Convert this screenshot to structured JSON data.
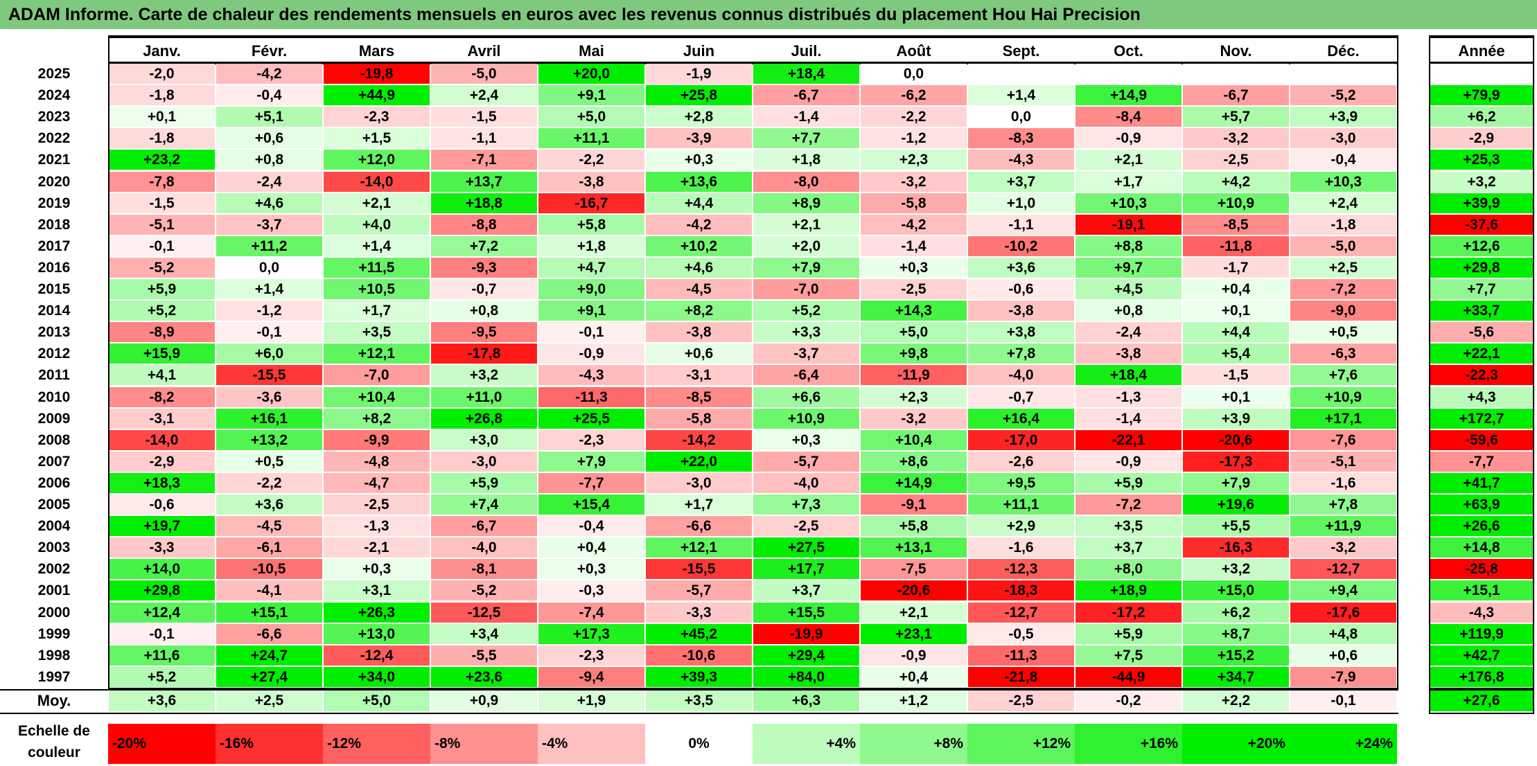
{
  "title": "ADAM Informe. Carte de chaleur des rendements mensuels en euros avec les revenus connus distribués du placement Hou Hai Precision",
  "chart_data": {
    "type": "heatmap",
    "months": [
      "Janv.",
      "Févr.",
      "Mars",
      "Avril",
      "Mai",
      "Juin",
      "Juil.",
      "Août",
      "Sept.",
      "Oct.",
      "Nov.",
      "Déc."
    ],
    "year_header": "Année",
    "rows": [
      {
        "year": "2025",
        "values": [
          -2.0,
          -4.2,
          -19.8,
          -5.0,
          20.0,
          -1.9,
          18.4,
          0.0,
          null,
          null,
          null,
          null
        ],
        "annual": null
      },
      {
        "year": "2024",
        "values": [
          -1.8,
          -0.4,
          44.9,
          2.4,
          9.1,
          25.8,
          -6.7,
          -6.2,
          1.4,
          14.9,
          -6.7,
          -5.2
        ],
        "annual": 79.9
      },
      {
        "year": "2023",
        "values": [
          0.1,
          5.1,
          -2.3,
          -1.5,
          5.0,
          2.8,
          -1.4,
          -2.2,
          0.0,
          -8.4,
          5.7,
          3.9
        ],
        "annual": 6.2
      },
      {
        "year": "2022",
        "values": [
          -1.8,
          0.6,
          1.5,
          -1.1,
          11.1,
          -3.9,
          7.7,
          -1.2,
          -8.3,
          -0.9,
          -3.2,
          -3.0
        ],
        "annual": -2.9
      },
      {
        "year": "2021",
        "values": [
          23.2,
          0.8,
          12.0,
          -7.1,
          -2.2,
          0.3,
          1.8,
          2.3,
          -4.3,
          2.1,
          -2.5,
          -0.4
        ],
        "annual": 25.3
      },
      {
        "year": "2020",
        "values": [
          -7.8,
          -2.4,
          -14.0,
          13.7,
          -3.8,
          13.6,
          -8.0,
          -3.2,
          3.7,
          1.7,
          4.2,
          10.3
        ],
        "annual": 3.2
      },
      {
        "year": "2019",
        "values": [
          -1.5,
          4.6,
          2.1,
          18.8,
          -16.7,
          4.4,
          8.9,
          -5.8,
          1.0,
          10.3,
          10.9,
          2.4
        ],
        "annual": 39.9
      },
      {
        "year": "2018",
        "values": [
          -5.1,
          -3.7,
          4.0,
          -8.8,
          5.8,
          -4.2,
          2.1,
          -4.2,
          -1.1,
          -19.1,
          -8.5,
          -1.8
        ],
        "annual": -37.6
      },
      {
        "year": "2017",
        "values": [
          -0.1,
          11.2,
          1.4,
          7.2,
          1.8,
          10.2,
          2.0,
          -1.4,
          -10.2,
          8.8,
          -11.8,
          -5.0
        ],
        "annual": 12.6
      },
      {
        "year": "2016",
        "values": [
          -5.2,
          0.0,
          11.5,
          -9.3,
          4.7,
          4.6,
          7.9,
          0.3,
          3.6,
          9.7,
          -1.7,
          2.5
        ],
        "annual": 29.8
      },
      {
        "year": "2015",
        "values": [
          5.9,
          1.4,
          10.5,
          -0.7,
          9.0,
          -4.5,
          -7.0,
          -2.5,
          -0.6,
          4.5,
          0.4,
          -7.2
        ],
        "annual": 7.7
      },
      {
        "year": "2014",
        "values": [
          5.2,
          -1.2,
          1.7,
          0.8,
          9.1,
          8.2,
          5.2,
          14.3,
          -3.8,
          0.8,
          0.1,
          -9.0
        ],
        "annual": 33.7
      },
      {
        "year": "2013",
        "values": [
          -8.9,
          -0.1,
          3.5,
          -9.5,
          -0.1,
          -3.8,
          3.3,
          5.0,
          3.8,
          -2.4,
          4.4,
          0.5
        ],
        "annual": -5.6
      },
      {
        "year": "2012",
        "values": [
          15.9,
          6.0,
          12.1,
          -17.8,
          -0.9,
          0.6,
          -3.7,
          9.8,
          7.8,
          -3.8,
          5.4,
          -6.3
        ],
        "annual": 22.1
      },
      {
        "year": "2011",
        "values": [
          4.1,
          -15.5,
          -7.0,
          3.2,
          -4.3,
          -3.1,
          -6.4,
          -11.9,
          -4.0,
          18.4,
          -1.5,
          7.6
        ],
        "annual": -22.3
      },
      {
        "year": "2010",
        "values": [
          -8.2,
          -3.6,
          10.4,
          11.0,
          -11.3,
          -8.5,
          6.6,
          2.3,
          -0.7,
          -1.3,
          0.1,
          10.9
        ],
        "annual": 4.3
      },
      {
        "year": "2009",
        "values": [
          -3.1,
          16.1,
          8.2,
          26.8,
          25.5,
          -5.8,
          10.9,
          -3.2,
          16.4,
          -1.4,
          3.9,
          17.1
        ],
        "annual": 172.7
      },
      {
        "year": "2008",
        "values": [
          -14.0,
          13.2,
          -9.9,
          3.0,
          -2.3,
          -14.2,
          0.3,
          10.4,
          -17.0,
          -22.1,
          -20.6,
          -7.6
        ],
        "annual": -59.6
      },
      {
        "year": "2007",
        "values": [
          -2.9,
          0.5,
          -4.8,
          -3.0,
          7.9,
          22.0,
          -5.7,
          8.6,
          -2.6,
          -0.9,
          -17.3,
          -5.1
        ],
        "annual": -7.7
      },
      {
        "year": "2006",
        "values": [
          18.3,
          -2.2,
          -4.7,
          5.9,
          -7.7,
          -3.0,
          -4.0,
          14.9,
          9.5,
          5.9,
          7.9,
          -1.6
        ],
        "annual": 41.7
      },
      {
        "year": "2005",
        "values": [
          -0.6,
          3.6,
          -2.5,
          7.4,
          15.4,
          1.7,
          7.3,
          -9.1,
          11.1,
          -7.2,
          19.6,
          7.8
        ],
        "annual": 63.9
      },
      {
        "year": "2004",
        "values": [
          19.7,
          -4.5,
          -1.3,
          -6.7,
          -0.4,
          -6.6,
          -2.5,
          5.8,
          2.9,
          3.5,
          5.5,
          11.9
        ],
        "annual": 26.6
      },
      {
        "year": "2003",
        "values": [
          -3.3,
          -6.1,
          -2.1,
          -4.0,
          0.4,
          12.1,
          27.5,
          13.1,
          -1.6,
          3.7,
          -16.3,
          -3.2
        ],
        "annual": 14.8
      },
      {
        "year": "2002",
        "values": [
          14.0,
          -10.5,
          0.3,
          -8.1,
          0.3,
          -15.5,
          17.7,
          -7.5,
          -12.3,
          8.0,
          3.2,
          -12.7
        ],
        "annual": -25.8
      },
      {
        "year": "2001",
        "values": [
          29.8,
          -4.1,
          3.1,
          -5.2,
          -0.3,
          -5.7,
          3.7,
          -20.6,
          -18.3,
          18.9,
          15.0,
          9.4
        ],
        "annual": 15.1
      },
      {
        "year": "2000",
        "values": [
          12.4,
          15.1,
          26.3,
          -12.5,
          -7.4,
          -3.3,
          15.5,
          2.1,
          -12.7,
          -17.2,
          6.2,
          -17.6
        ],
        "annual": -4.3
      },
      {
        "year": "1999",
        "values": [
          -0.1,
          -6.6,
          13.0,
          3.4,
          17.3,
          45.2,
          -19.9,
          23.1,
          -0.5,
          5.9,
          8.7,
          4.8
        ],
        "annual": 119.9
      },
      {
        "year": "1998",
        "values": [
          11.6,
          24.7,
          -12.4,
          -5.5,
          -2.3,
          -10.6,
          29.4,
          -0.9,
          -11.3,
          7.5,
          15.2,
          0.6
        ],
        "annual": 42.7
      },
      {
        "year": "1997",
        "values": [
          5.2,
          27.4,
          34.0,
          23.6,
          -9.4,
          39.3,
          84.0,
          0.4,
          -21.8,
          -44.9,
          34.7,
          -7.9
        ],
        "annual": 176.8
      }
    ],
    "average": {
      "label": "Moy.",
      "values": [
        3.6,
        2.5,
        5.0,
        0.9,
        1.9,
        3.5,
        6.3,
        1.2,
        -2.5,
        -0.2,
        2.2,
        -0.1
      ],
      "annual": 27.6
    },
    "scale": {
      "label": "Echelle de couleur",
      "stops": [
        "-20%",
        "-16%",
        "-12%",
        "-8%",
        "-4%",
        "0%",
        "+4%",
        "+8%",
        "+12%",
        "+16%",
        "+20%",
        "+24%"
      ]
    },
    "colors": {
      "negative": "#ff0000",
      "positive": "#00ee00",
      "zero": "#ffffff",
      "title_bg": "#7fc97f"
    }
  }
}
